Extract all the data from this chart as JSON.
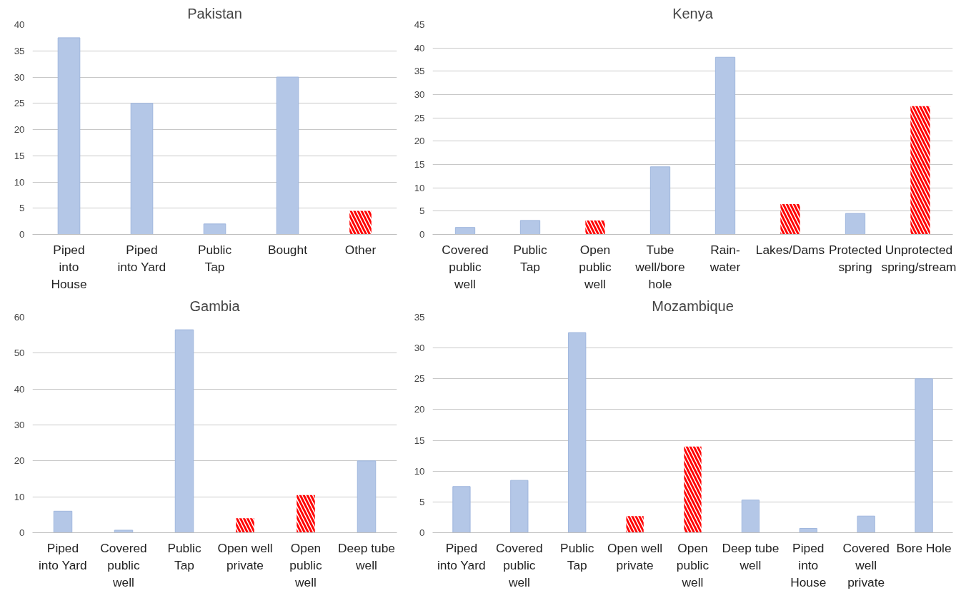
{
  "chart_data": [
    {
      "type": "bar",
      "title": "Pakistan",
      "categories": [
        "Piped into House",
        "Piped into Yard",
        "Public Tap",
        "Bought",
        "Other"
      ],
      "series": [
        {
          "color": "#b4c7e7",
          "values": [
            37.5,
            25,
            2,
            30,
            null
          ]
        },
        {
          "color": "#ff0000",
          "values": [
            null,
            null,
            null,
            null,
            4.5
          ]
        }
      ],
      "ylim": [
        0,
        40
      ],
      "yticks": [
        0,
        5,
        10,
        15,
        20,
        25,
        30,
        35,
        40
      ],
      "grid": "y"
    },
    {
      "type": "bar",
      "title": "Kenya",
      "categories": [
        "Covered public well",
        "Public Tap",
        "Open public well",
        "Tube well/bore hole",
        "Rain-water",
        "Lakes/Dams",
        "Protected spring",
        "Unprotected spring/stream"
      ],
      "series": [
        {
          "color": "#b4c7e7",
          "values": [
            1.5,
            3,
            null,
            14.5,
            38,
            null,
            4.5,
            null
          ]
        },
        {
          "color": "#ff0000",
          "values": [
            null,
            null,
            3,
            null,
            null,
            6.5,
            null,
            27.5
          ]
        }
      ],
      "ylim": [
        0,
        45
      ],
      "yticks": [
        0,
        5,
        10,
        15,
        20,
        25,
        30,
        35,
        40,
        45
      ],
      "grid": "y"
    },
    {
      "type": "bar",
      "title": "Gambia",
      "categories": [
        "Piped into Yard",
        "Covered public well",
        "Public Tap",
        "Open well private",
        "Open public well",
        "Deep tube well"
      ],
      "series": [
        {
          "color": "#b4c7e7",
          "values": [
            6,
            0.7,
            56.5,
            null,
            null,
            20
          ]
        },
        {
          "color": "#ff0000",
          "values": [
            null,
            null,
            null,
            4,
            10.5,
            null
          ]
        }
      ],
      "ylim": [
        0,
        60
      ],
      "yticks": [
        0,
        10,
        20,
        30,
        40,
        50,
        60
      ],
      "grid": "y"
    },
    {
      "type": "bar",
      "title": "Mozambique",
      "categories": [
        "Piped into Yard",
        "Covered public well",
        "Public Tap",
        "Open well private",
        "Open public well",
        "Deep tube well",
        "Piped into House",
        "Covered well private",
        "Bore Hole"
      ],
      "series": [
        {
          "color": "#b4c7e7",
          "values": [
            7.5,
            8.5,
            32.5,
            null,
            null,
            5.3,
            0.7,
            2.7,
            25
          ]
        },
        {
          "color": "#ff0000",
          "values": [
            null,
            null,
            null,
            2.7,
            14,
            null,
            null,
            null,
            null
          ]
        }
      ],
      "ylim": [
        0,
        35
      ],
      "yticks": [
        0,
        5,
        10,
        15,
        20,
        25,
        30,
        35
      ],
      "grid": "y"
    }
  ]
}
